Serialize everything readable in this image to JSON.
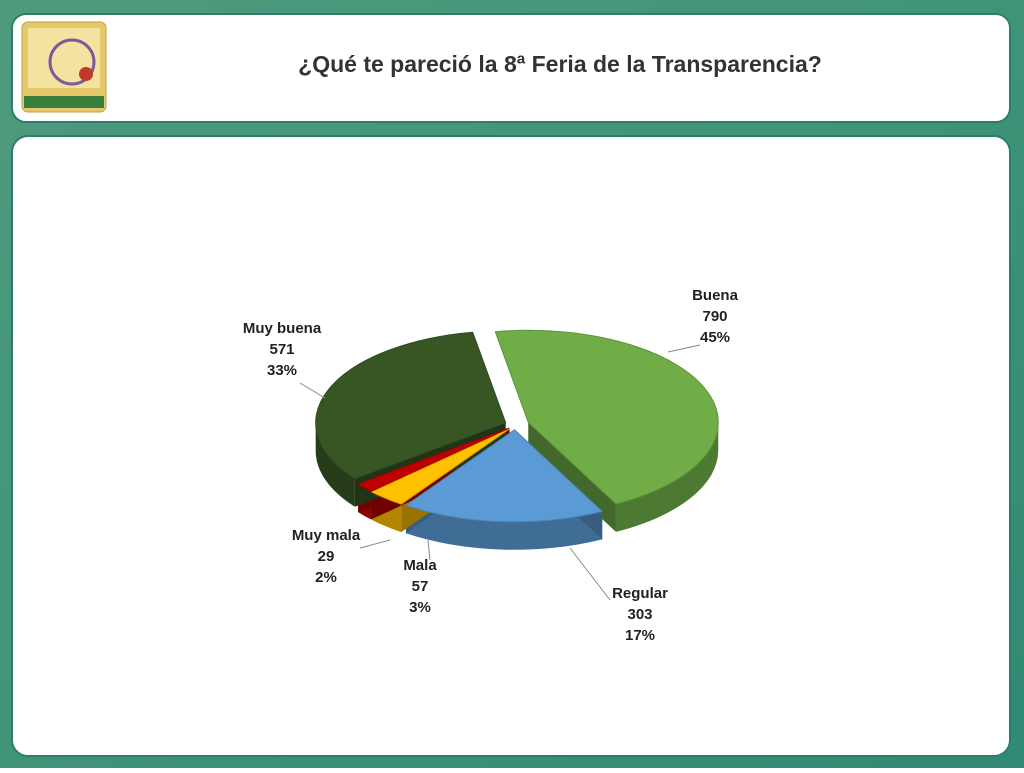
{
  "title": "¿Qué te pareció la 8ª Feria de la Transparencia?",
  "chart_data": {
    "type": "pie",
    "categories": [
      "Buena",
      "Regular",
      "Mala",
      "Muy mala",
      "Muy buena"
    ],
    "values": [
      790,
      303,
      57,
      29,
      571
    ],
    "percent_labels": [
      "45%",
      "17%",
      "3%",
      "2%",
      "33%"
    ],
    "colors": [
      "#70ad47",
      "#5b9bd5",
      "#ffc000",
      "#c00000",
      "#375623"
    ]
  }
}
